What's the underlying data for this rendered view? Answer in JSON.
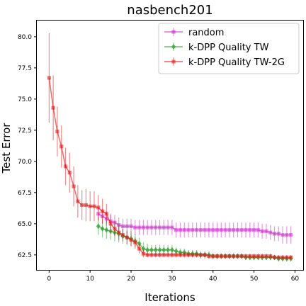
{
  "chart_data": {
    "type": "line",
    "title": "nasbench201",
    "xlabel": "Iterations",
    "ylabel": "Test Error",
    "xlim": [
      -3,
      62
    ],
    "ylim": [
      61.3,
      81.3
    ],
    "xticks": [
      0,
      10,
      20,
      30,
      40,
      50,
      60
    ],
    "yticks": [
      62.5,
      65.0,
      67.5,
      70.0,
      72.5,
      75.0,
      77.5,
      80.0
    ],
    "ytick_labels": [
      "62.5",
      "65.0",
      "67.5",
      "70.0",
      "72.5",
      "75.0",
      "77.5",
      "80.0"
    ],
    "legend_position": "upper-right",
    "grid": false,
    "series": [
      {
        "name": "random",
        "color": "#cc33cc",
        "marker": "square",
        "x": [
          12,
          13,
          14,
          15,
          16,
          17,
          18,
          19,
          20,
          21,
          22,
          23,
          24,
          25,
          26,
          27,
          28,
          29,
          30,
          31,
          32,
          33,
          34,
          35,
          36,
          37,
          38,
          39,
          40,
          41,
          42,
          43,
          44,
          45,
          46,
          47,
          48,
          49,
          50,
          51,
          52,
          53,
          54,
          55,
          56,
          57,
          58,
          59
        ],
        "y": [
          65.8,
          65.6,
          65.4,
          65.2,
          65.1,
          64.9,
          64.8,
          64.8,
          64.8,
          64.7,
          64.7,
          64.7,
          64.7,
          64.7,
          64.7,
          64.7,
          64.7,
          64.7,
          64.7,
          64.5,
          64.5,
          64.5,
          64.5,
          64.5,
          64.5,
          64.5,
          64.5,
          64.5,
          64.5,
          64.5,
          64.5,
          64.5,
          64.5,
          64.5,
          64.5,
          64.5,
          64.5,
          64.5,
          64.5,
          64.5,
          64.4,
          64.4,
          64.3,
          64.2,
          64.2,
          64.1,
          64.1,
          64.1
        ],
        "err": [
          0.6,
          0.6,
          0.6,
          0.6,
          0.6,
          0.6,
          0.6,
          0.6,
          0.6,
          0.6,
          0.6,
          0.6,
          0.6,
          0.6,
          0.6,
          0.6,
          0.6,
          0.6,
          0.6,
          0.6,
          0.6,
          0.6,
          0.6,
          0.6,
          0.6,
          0.6,
          0.6,
          0.6,
          0.6,
          0.6,
          0.6,
          0.6,
          0.6,
          0.6,
          0.6,
          0.6,
          0.6,
          0.6,
          0.6,
          0.6,
          0.6,
          0.6,
          0.6,
          0.6,
          0.6,
          0.7,
          0.7,
          0.7
        ]
      },
      {
        "name": "k-DPP Quality TW",
        "color": "#2ca02c",
        "marker": "diamond",
        "x": [
          12,
          13,
          14,
          15,
          16,
          17,
          18,
          19,
          20,
          21,
          22,
          23,
          24,
          25,
          26,
          27,
          28,
          29,
          30,
          31,
          32,
          33,
          34,
          35,
          36,
          37,
          38,
          39,
          40,
          41,
          42,
          43,
          44,
          45,
          46,
          47,
          48,
          49,
          50,
          51,
          52,
          53,
          54,
          55,
          56,
          57,
          58,
          59
        ],
        "y": [
          64.8,
          64.6,
          64.5,
          64.4,
          64.3,
          64.2,
          64.0,
          63.9,
          63.8,
          63.6,
          63.4,
          63.0,
          62.9,
          62.9,
          62.9,
          62.9,
          62.9,
          62.9,
          62.9,
          62.8,
          62.7,
          62.7,
          62.6,
          62.6,
          62.6,
          62.5,
          62.5,
          62.5,
          62.4,
          62.4,
          62.4,
          62.4,
          62.4,
          62.4,
          62.4,
          62.4,
          62.3,
          62.3,
          62.3,
          62.3,
          62.3,
          62.3,
          62.3,
          62.3,
          62.2,
          62.2,
          62.2,
          62.2
        ],
        "err": [
          0.7,
          0.7,
          0.7,
          0.7,
          0.7,
          0.7,
          0.6,
          0.6,
          0.6,
          0.6,
          0.5,
          0.5,
          0.5,
          0.4,
          0.4,
          0.4,
          0.4,
          0.4,
          0.4,
          0.3,
          0.3,
          0.3,
          0.3,
          0.3,
          0.3,
          0.3,
          0.3,
          0.3,
          0.2,
          0.2,
          0.2,
          0.2,
          0.2,
          0.2,
          0.2,
          0.2,
          0.2,
          0.2,
          0.2,
          0.2,
          0.2,
          0.2,
          0.2,
          0.2,
          0.2,
          0.2,
          0.2,
          0.2
        ]
      },
      {
        "name": "k-DPP Quality TW-2G",
        "color": "#e31a1c",
        "marker": "square",
        "x": [
          0,
          1,
          2,
          3,
          4,
          5,
          6,
          7,
          8,
          9,
          10,
          11,
          12,
          13,
          14,
          15,
          16,
          17,
          18,
          19,
          20,
          21,
          22,
          23,
          24,
          25,
          26,
          27,
          28,
          29,
          30,
          31,
          32,
          33,
          34,
          35,
          36,
          37,
          38,
          39,
          40,
          41,
          42,
          43,
          44,
          45,
          46,
          47,
          48,
          49,
          50,
          51,
          52,
          53,
          54,
          55,
          56,
          57,
          58,
          59
        ],
        "y": [
          76.7,
          74.3,
          72.4,
          71.2,
          69.6,
          69.1,
          68.0,
          66.8,
          66.5,
          66.5,
          66.4,
          66.4,
          66.3,
          66.0,
          65.8,
          65.0,
          64.6,
          64.3,
          64.1,
          63.9,
          63.7,
          63.5,
          63.0,
          62.6,
          62.5,
          62.5,
          62.5,
          62.5,
          62.5,
          62.5,
          62.5,
          62.5,
          62.5,
          62.5,
          62.5,
          62.5,
          62.5,
          62.5,
          62.5,
          62.4,
          62.4,
          62.4,
          62.4,
          62.4,
          62.4,
          62.4,
          62.4,
          62.4,
          62.4,
          62.4,
          62.4,
          62.4,
          62.4,
          62.4,
          62.4,
          62.3,
          62.3,
          62.3,
          62.3,
          62.3
        ],
        "err": [
          3.6,
          2.6,
          2.0,
          1.7,
          1.5,
          1.6,
          1.6,
          1.3,
          1.2,
          1.3,
          1.2,
          1.2,
          1.0,
          1.0,
          0.8,
          0.7,
          0.6,
          0.6,
          0.5,
          0.5,
          0.5,
          0.4,
          0.4,
          0.3,
          0.2,
          0.2,
          0.2,
          0.2,
          0.2,
          0.2,
          0.2,
          0.2,
          0.2,
          0.2,
          0.2,
          0.2,
          0.2,
          0.2,
          0.2,
          0.2,
          0.2,
          0.2,
          0.2,
          0.2,
          0.2,
          0.2,
          0.2,
          0.2,
          0.2,
          0.2,
          0.2,
          0.2,
          0.2,
          0.2,
          0.2,
          0.2,
          0.2,
          0.2,
          0.2,
          0.2
        ]
      }
    ]
  }
}
